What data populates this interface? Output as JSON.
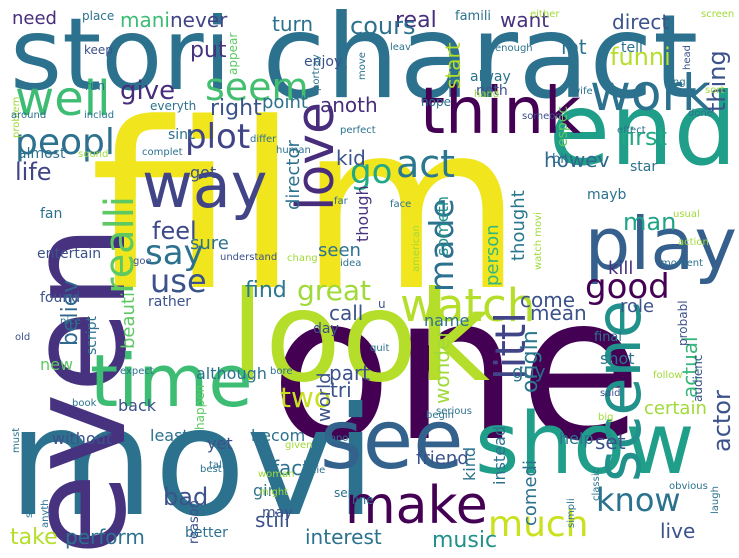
{
  "word_cloud": {
    "words": [
      {
        "text": "film",
        "color": "#f1e51d"
      },
      {
        "text": "one",
        "color": "#440154"
      },
      {
        "text": "movi",
        "color": "#2c728e"
      },
      {
        "text": "charact",
        "color": "#2c728e"
      },
      {
        "text": "even",
        "color": "#46327e"
      },
      {
        "text": "stori",
        "color": "#2c728e"
      },
      {
        "text": "look",
        "color": "#b5de2b"
      },
      {
        "text": "end",
        "color": "#1f9e89"
      },
      {
        "text": "show",
        "color": "#1f9e89"
      },
      {
        "text": "time",
        "color": "#3dbc74"
      },
      {
        "text": "see",
        "color": "#33638d"
      },
      {
        "text": "think",
        "color": "#440154"
      },
      {
        "text": "play",
        "color": "#355f8d"
      },
      {
        "text": "way",
        "color": "#414487"
      },
      {
        "text": "make",
        "color": "#440154"
      },
      {
        "text": "love",
        "color": "#472d7b"
      },
      {
        "text": "scene",
        "color": "#21918c"
      },
      {
        "text": "watch",
        "color": "#b5de2b"
      },
      {
        "text": "well",
        "color": "#3dbc74"
      },
      {
        "text": "work",
        "color": "#2c728e"
      },
      {
        "text": "peopl",
        "color": "#2c728e"
      },
      {
        "text": "seem",
        "color": "#44bf70"
      },
      {
        "text": "littl",
        "color": "#414487"
      },
      {
        "text": "much",
        "color": "#cae11f"
      },
      {
        "text": "good",
        "color": "#440154"
      },
      {
        "text": "know",
        "color": "#2c728e"
      },
      {
        "text": "act",
        "color": "#2a788e"
      },
      {
        "text": "go",
        "color": "#22a884"
      },
      {
        "text": "say",
        "color": "#2c728e"
      },
      {
        "text": "realli",
        "color": "#5ec962"
      },
      {
        "text": "made",
        "color": "#2c728e"
      },
      {
        "text": "use",
        "color": "#3b528b"
      },
      {
        "text": "plot",
        "color": "#414487"
      },
      {
        "text": "great",
        "color": "#a0da39"
      },
      {
        "text": "find",
        "color": "#2a788e"
      },
      {
        "text": "feel",
        "color": "#3e4989"
      },
      {
        "text": "man",
        "color": "#20a486"
      },
      {
        "text": "actor",
        "color": "#3b528b"
      },
      {
        "text": "life",
        "color": "#414487"
      },
      {
        "text": "give",
        "color": "#472d7b"
      },
      {
        "text": "thing",
        "color": "#3b528b"
      },
      {
        "text": "first",
        "color": "#22a884"
      },
      {
        "text": "want",
        "color": "#46327e"
      },
      {
        "text": "lot",
        "color": "#2c728e"
      },
      {
        "text": "direct",
        "color": "#3b528b"
      },
      {
        "text": "real",
        "color": "#472d7b"
      },
      {
        "text": "cours",
        "color": "#2c728e"
      },
      {
        "text": "turn",
        "color": "#2c728e"
      },
      {
        "text": "never",
        "color": "#414487"
      },
      {
        "text": "mani",
        "color": "#3dbc74"
      },
      {
        "text": "need",
        "color": "#472d7b"
      },
      {
        "text": "put",
        "color": "#46327e"
      },
      {
        "text": "funni",
        "color": "#b5de2b"
      },
      {
        "text": "start",
        "color": "#b5de2b"
      },
      {
        "text": "right",
        "color": "#3b528b"
      },
      {
        "text": "anoth",
        "color": "#472d7b"
      },
      {
        "text": "point",
        "color": "#2c728e"
      },
      {
        "text": "kid",
        "color": "#3b528b"
      },
      {
        "text": "howev",
        "color": "#31688e"
      },
      {
        "text": "got",
        "color": "#3b528b"
      },
      {
        "text": "director",
        "color": "#2c728e"
      },
      {
        "text": "sure",
        "color": "#2c728e"
      },
      {
        "text": "seen",
        "color": "#2c728e"
      },
      {
        "text": "though",
        "color": "#46327e"
      },
      {
        "text": "person",
        "color": "#35b779"
      },
      {
        "text": "someth",
        "color": "#21918c"
      },
      {
        "text": "thought",
        "color": "#2a788e"
      },
      {
        "text": "kill",
        "color": "#46327e"
      },
      {
        "text": "come",
        "color": "#3b528b"
      },
      {
        "text": "call",
        "color": "#3b528b"
      },
      {
        "text": "mean",
        "color": "#3b528b"
      },
      {
        "text": "role",
        "color": "#3b528b"
      },
      {
        "text": "origin",
        "color": "#2a788e"
      },
      {
        "text": "believ",
        "color": "#31688e"
      },
      {
        "text": "beauti",
        "color": "#5ec962"
      },
      {
        "text": "part",
        "color": "#3b528b"
      },
      {
        "text": "tri",
        "color": "#3b528b"
      },
      {
        "text": "two",
        "color": "#c8e020"
      },
      {
        "text": "world",
        "color": "#3b528b"
      },
      {
        "text": "wonder",
        "color": "#a0da39"
      },
      {
        "text": "actual",
        "color": "#35b779"
      },
      {
        "text": "guy",
        "color": "#2c728e"
      },
      {
        "text": "set",
        "color": "#3b528b"
      },
      {
        "text": "fact",
        "color": "#2c728e"
      },
      {
        "text": "bad",
        "color": "#3b528b"
      },
      {
        "text": "still",
        "color": "#3b528b"
      },
      {
        "text": "interest",
        "color": "#2c728e"
      },
      {
        "text": "music",
        "color": "#21918c"
      },
      {
        "text": "take",
        "color": "#b5de2b"
      },
      {
        "text": "perform",
        "color": "#2c728e"
      },
      {
        "text": "live",
        "color": "#3b528b"
      },
      {
        "text": "comedi",
        "color": "#2c728e"
      },
      {
        "text": "instead",
        "color": "#2c728e"
      },
      {
        "text": "friend",
        "color": "#3b528b"
      },
      {
        "text": "kind",
        "color": "#2c728e"
      },
      {
        "text": "girl",
        "color": "#2c728e"
      },
      {
        "text": "back",
        "color": "#3b528b"
      },
      {
        "text": "although",
        "color": "#2c728e"
      },
      {
        "text": "becom",
        "color": "#2c728e"
      },
      {
        "text": "least",
        "color": "#2c728e"
      },
      {
        "text": "without",
        "color": "#3b528b"
      },
      {
        "text": "yet",
        "color": "#3b528b"
      },
      {
        "text": "help",
        "color": "#2c728e"
      },
      {
        "text": "certain",
        "color": "#a0da39"
      },
      {
        "text": "shot",
        "color": "#2c728e"
      },
      {
        "text": "name",
        "color": "#2c728e"
      },
      {
        "text": "found",
        "color": "#3b528b"
      },
      {
        "text": "new",
        "color": "#5ec962"
      },
      {
        "text": "rather",
        "color": "#3b528b"
      },
      {
        "text": "day",
        "color": "#3b528b"
      },
      {
        "text": "fan",
        "color": "#2c728e"
      },
      {
        "text": "entertain",
        "color": "#3b528b"
      },
      {
        "text": "script",
        "color": "#2c728e"
      },
      {
        "text": "almost",
        "color": "#2c728e"
      },
      {
        "text": "sinc",
        "color": "#2c728e"
      },
      {
        "text": "star",
        "color": "#2c728e"
      },
      {
        "text": "mayb",
        "color": "#2c728e"
      },
      {
        "text": "enjoy",
        "color": "#3b528b"
      },
      {
        "text": "alway",
        "color": "#2c728e"
      },
      {
        "text": "noth",
        "color": "#3b528b"
      },
      {
        "text": "espec",
        "color": "#5ec962"
      },
      {
        "text": "tell",
        "color": "#2c728e"
      },
      {
        "text": "famili",
        "color": "#2c728e"
      },
      {
        "text": "appear",
        "color": "#5ec962"
      },
      {
        "text": "place",
        "color": "#2c728e"
      },
      {
        "text": "keep",
        "color": "#3b528b"
      },
      {
        "text": "run",
        "color": "#2c728e"
      },
      {
        "text": "everyth",
        "color": "#2c728e"
      },
      {
        "text": "bit",
        "color": "#2c728e"
      },
      {
        "text": "final",
        "color": "#2c728e"
      },
      {
        "text": "probabl",
        "color": "#3b528b"
      },
      {
        "text": "audienc",
        "color": "#3b528b"
      },
      {
        "text": "happen",
        "color": "#5ec962"
      },
      {
        "text": "may",
        "color": "#3b528b"
      },
      {
        "text": "better",
        "color": "#2c728e"
      },
      {
        "text": "reason",
        "color": "#3b528b"
      },
      {
        "text": "seri",
        "color": "#2c728e"
      },
      {
        "text": "line",
        "color": "#2c728e"
      },
      {
        "text": "hope",
        "color": "#2c728e"
      },
      {
        "text": "human",
        "color": "#2c728e"
      },
      {
        "text": "perfect",
        "color": "#2c728e"
      },
      {
        "text": "effect",
        "color": "#2c728e"
      },
      {
        "text": "done",
        "color": "#2c728e"
      },
      {
        "text": "long",
        "color": "#2c728e"
      },
      {
        "text": "head",
        "color": "#3b528b"
      },
      {
        "text": "wife",
        "color": "#2c728e"
      },
      {
        "text": "hand",
        "color": "#a0da39"
      },
      {
        "text": "someon",
        "color": "#3b528b"
      },
      {
        "text": "either",
        "color": "#a0da39"
      },
      {
        "text": "screen",
        "color": "#a0da39"
      },
      {
        "text": "enough",
        "color": "#2c728e"
      },
      {
        "text": "leav",
        "color": "#2c728e"
      },
      {
        "text": "portray",
        "color": "#2c728e"
      },
      {
        "text": "surpri",
        "color": "#2c728e"
      },
      {
        "text": "move",
        "color": "#2c728e"
      },
      {
        "text": "problem",
        "color": "#a0da39"
      },
      {
        "text": "around",
        "color": "#2c728e"
      },
      {
        "text": "includ",
        "color": "#2c728e"
      },
      {
        "text": "sound",
        "color": "#a0da39"
      },
      {
        "text": "complet",
        "color": "#2c728e"
      },
      {
        "text": "differ",
        "color": "#2c728e"
      },
      {
        "text": "far",
        "color": "#2c728e"
      },
      {
        "text": "watch movi",
        "color": "#a0da39"
      },
      {
        "text": "usual",
        "color": "#a0da39"
      },
      {
        "text": "action",
        "color": "#a0da39"
      },
      {
        "text": "american",
        "color": "#a0da39"
      },
      {
        "text": "chang",
        "color": "#a0da39"
      },
      {
        "text": "idea",
        "color": "#2c728e"
      },
      {
        "text": "goe",
        "color": "#3b528b"
      },
      {
        "text": "understand",
        "color": "#3b528b"
      },
      {
        "text": "moment",
        "color": "#2c728e"
      },
      {
        "text": "nice",
        "color": "#2c728e"
      },
      {
        "text": "old",
        "color": "#3b528b"
      },
      {
        "text": "quit",
        "color": "#2c728e"
      },
      {
        "text": "expect",
        "color": "#2c728e"
      },
      {
        "text": "bore",
        "color": "#2c728e"
      },
      {
        "text": "suppos",
        "color": "#2c728e"
      },
      {
        "text": "serious",
        "color": "#2c728e"
      },
      {
        "text": "follow",
        "color": "#a0da39"
      },
      {
        "text": "big",
        "color": "#a0da39"
      },
      {
        "text": "begin",
        "color": "#2c728e"
      },
      {
        "text": "said",
        "color": "#3b528b"
      },
      {
        "text": "book",
        "color": "#2c728e"
      },
      {
        "text": "must",
        "color": "#2c728e"
      },
      {
        "text": "talk",
        "color": "#2c728e"
      },
      {
        "text": "given",
        "color": "#a0da39"
      },
      {
        "text": "woman",
        "color": "#a0da39"
      },
      {
        "text": "might",
        "color": "#a0da39"
      },
      {
        "text": "die",
        "color": "#2c728e"
      },
      {
        "text": "best",
        "color": "#2c728e"
      },
      {
        "text": "stupid",
        "color": "#2c728e"
      },
      {
        "text": "anyth",
        "color": "#2c728e"
      },
      {
        "text": "obvious",
        "color": "#2c728e"
      },
      {
        "text": "simpli",
        "color": "#2c728e"
      },
      {
        "text": "laugh",
        "color": "#2c728e"
      },
      {
        "text": "classic",
        "color": "#2c728e"
      },
      {
        "text": "face",
        "color": "#2c728e"
      },
      {
        "text": "sort",
        "color": "#a0da39"
      },
      {
        "text": "u",
        "color": "#3b528b"
      }
    ]
  }
}
